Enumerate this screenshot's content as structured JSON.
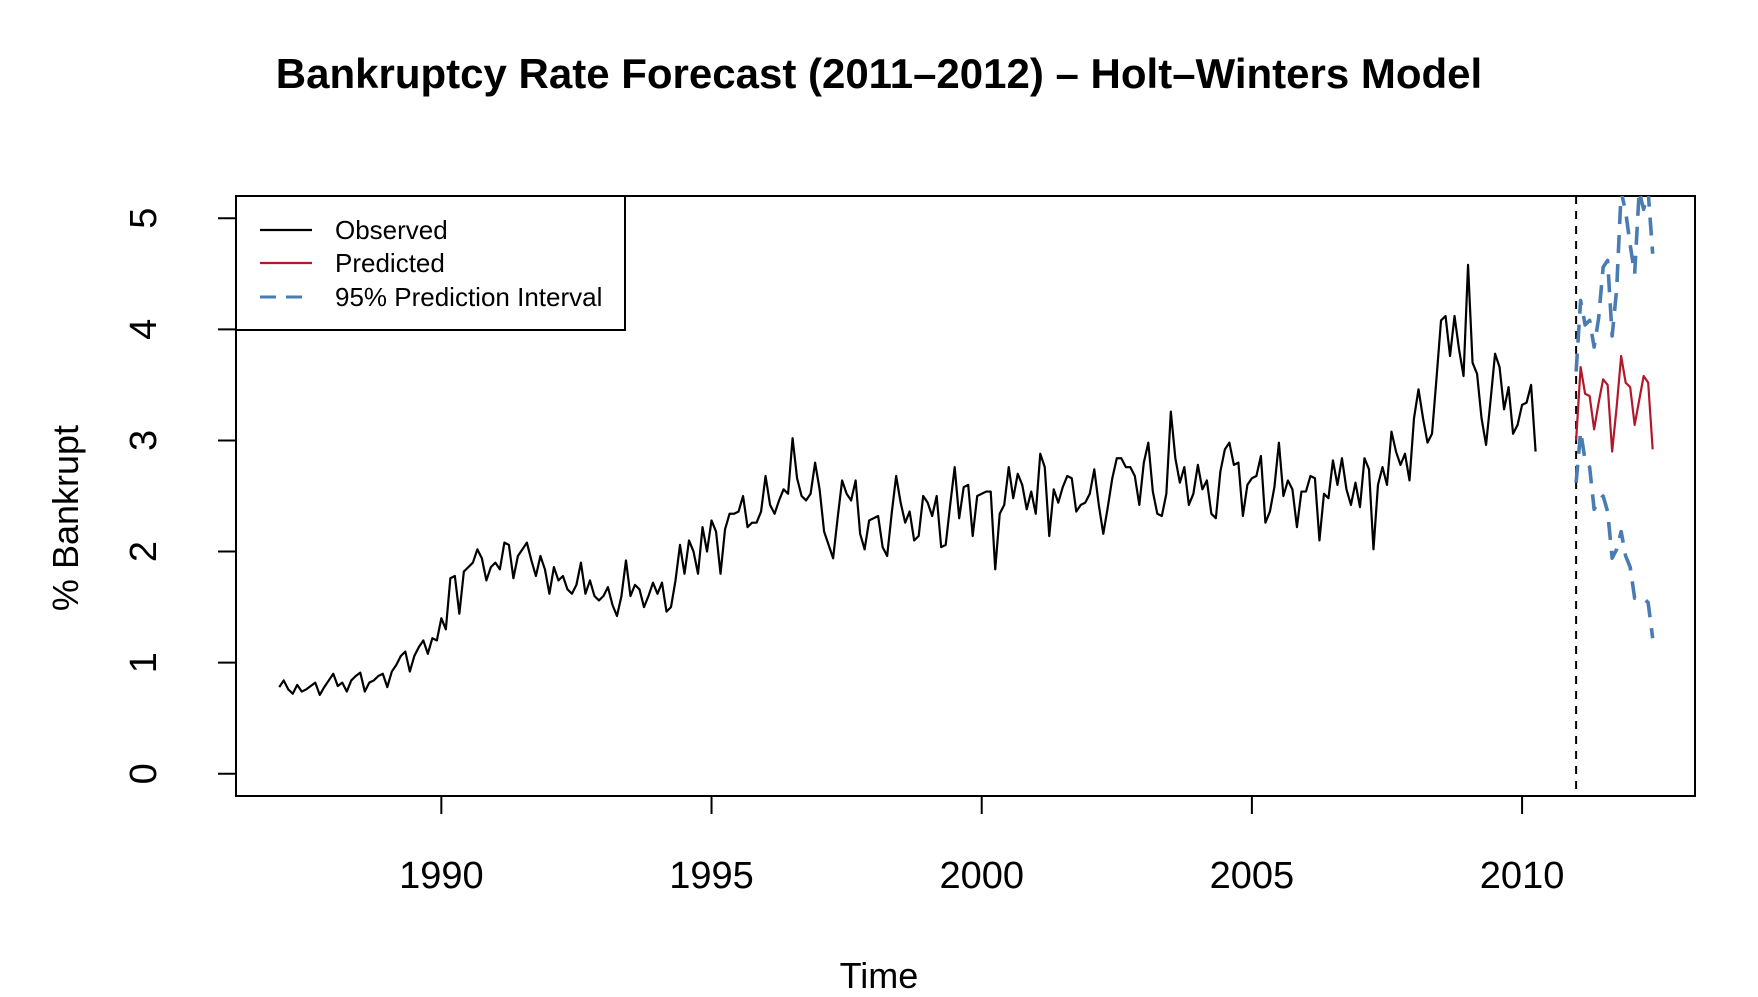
{
  "chart_data": {
    "type": "line",
    "title": "Bankruptcy Rate Forecast (2011–2012) – Holt–Winters Model",
    "xlabel": "Time",
    "ylabel": "% Bankrupt",
    "xlim": [
      1986.2,
      2013.2
    ],
    "ylim": [
      -0.2,
      5.2
    ],
    "x_ticks": [
      1990,
      1995,
      2000,
      2005,
      2010
    ],
    "x_tick_labels": [
      "1990",
      "1995",
      "2000",
      "2005",
      "2010"
    ],
    "y_ticks": [
      0,
      1,
      2,
      3,
      4,
      5
    ],
    "y_tick_labels": [
      "0",
      "1",
      "2",
      "3",
      "4",
      "5"
    ],
    "grid": false,
    "legend_position": "top-left",
    "forecast_start_line": {
      "x": 2011.0,
      "style": "dashed",
      "color": "#000000"
    },
    "series": [
      {
        "name": "Observed",
        "color": "#000000",
        "style": "solid",
        "x_start": 1987.0,
        "x_step": 0.0833333,
        "values": [
          0.78,
          0.84,
          0.76,
          0.72,
          0.8,
          0.74,
          0.76,
          0.79,
          0.82,
          0.71,
          0.78,
          0.84,
          0.9,
          0.79,
          0.82,
          0.74,
          0.84,
          0.88,
          0.91,
          0.74,
          0.82,
          0.84,
          0.88,
          0.9,
          0.78,
          0.92,
          0.98,
          1.06,
          1.1,
          0.92,
          1.06,
          1.14,
          1.2,
          1.08,
          1.22,
          1.2,
          1.4,
          1.3,
          1.76,
          1.78,
          1.44,
          1.82,
          1.86,
          1.9,
          2.02,
          1.94,
          1.74,
          1.86,
          1.9,
          1.84,
          2.08,
          2.06,
          1.76,
          1.96,
          2.02,
          2.08,
          1.92,
          1.78,
          1.96,
          1.84,
          1.62,
          1.86,
          1.74,
          1.78,
          1.66,
          1.62,
          1.7,
          1.9,
          1.62,
          1.74,
          1.6,
          1.56,
          1.6,
          1.68,
          1.52,
          1.42,
          1.6,
          1.92,
          1.6,
          1.7,
          1.66,
          1.5,
          1.6,
          1.72,
          1.62,
          1.72,
          1.46,
          1.5,
          1.74,
          2.06,
          1.8,
          2.1,
          2.0,
          1.8,
          2.22,
          2.0,
          2.28,
          2.18,
          1.8,
          2.2,
          2.34,
          2.34,
          2.36,
          2.5,
          2.22,
          2.26,
          2.26,
          2.36,
          2.68,
          2.42,
          2.34,
          2.46,
          2.56,
          2.52,
          3.02,
          2.66,
          2.5,
          2.46,
          2.52,
          2.8,
          2.56,
          2.18,
          2.06,
          1.94,
          2.3,
          2.64,
          2.52,
          2.46,
          2.64,
          2.16,
          2.02,
          2.28,
          2.3,
          2.32,
          2.04,
          1.96,
          2.34,
          2.68,
          2.44,
          2.26,
          2.36,
          2.1,
          2.14,
          2.5,
          2.44,
          2.32,
          2.5,
          2.04,
          2.06,
          2.42,
          2.76,
          2.3,
          2.58,
          2.6,
          2.14,
          2.5,
          2.52,
          2.54,
          2.54,
          1.84,
          2.34,
          2.42,
          2.76,
          2.48,
          2.7,
          2.6,
          2.38,
          2.54,
          2.34,
          2.88,
          2.76,
          2.14,
          2.56,
          2.44,
          2.58,
          2.68,
          2.66,
          2.36,
          2.42,
          2.44,
          2.52,
          2.74,
          2.42,
          2.16,
          2.4,
          2.66,
          2.84,
          2.84,
          2.76,
          2.76,
          2.68,
          2.42,
          2.8,
          2.98,
          2.54,
          2.34,
          2.32,
          2.52,
          3.26,
          2.84,
          2.62,
          2.76,
          2.42,
          2.52,
          2.78,
          2.56,
          2.64,
          2.34,
          2.3,
          2.72,
          2.92,
          2.98,
          2.78,
          2.8,
          2.32,
          2.6,
          2.66,
          2.68,
          2.86,
          2.26,
          2.36,
          2.58,
          2.98,
          2.5,
          2.64,
          2.56,
          2.22,
          2.54,
          2.54,
          2.68,
          2.66,
          2.1,
          2.52,
          2.48,
          2.82,
          2.6,
          2.84,
          2.56,
          2.42,
          2.62,
          2.4,
          2.84,
          2.74,
          2.02,
          2.6,
          2.76,
          2.6,
          3.08,
          2.9,
          2.78,
          2.88,
          2.64,
          3.2,
          3.46,
          3.2,
          2.98,
          3.06,
          3.56,
          4.08,
          4.12,
          3.76,
          4.12,
          3.82,
          3.58,
          4.58,
          3.7,
          3.6,
          3.2,
          2.96,
          3.36,
          3.78,
          3.66,
          3.28,
          3.48,
          3.06,
          3.14,
          3.32,
          3.34,
          3.5,
          2.9
        ]
      },
      {
        "name": "Predicted",
        "color": "#b2182b",
        "style": "solid",
        "x_start": 2011.0,
        "x_step": 0.0833333,
        "values": [
          3.0,
          3.66,
          3.42,
          3.4,
          3.1,
          3.34,
          3.55,
          3.5,
          2.9,
          3.3,
          3.76,
          3.52,
          3.48,
          3.14,
          3.36,
          3.58,
          3.52,
          2.92
        ]
      },
      {
        "name": "95% Prediction Interval",
        "color": "#4a7cb4",
        "style": "dashed",
        "x_start": 2011.0,
        "x_step": 0.0833333,
        "values": [
          3.62,
          4.26,
          4.04,
          4.08,
          3.84,
          4.1,
          4.56,
          4.62,
          3.94,
          4.36,
          5.24,
          5.06,
          4.76,
          4.5,
          5.24,
          5.08,
          5.24,
          4.68
        ]
      },
      {
        "name": "",
        "color": "#4a7cb4",
        "style": "dashed",
        "x_start": 2011.0,
        "x_step": 0.0833333,
        "values": [
          2.62,
          3.08,
          2.82,
          2.76,
          2.38,
          2.46,
          2.5,
          2.36,
          1.94,
          2.02,
          2.18,
          1.96,
          1.86,
          1.58,
          1.58,
          1.58,
          1.54,
          1.22
        ]
      }
    ]
  }
}
